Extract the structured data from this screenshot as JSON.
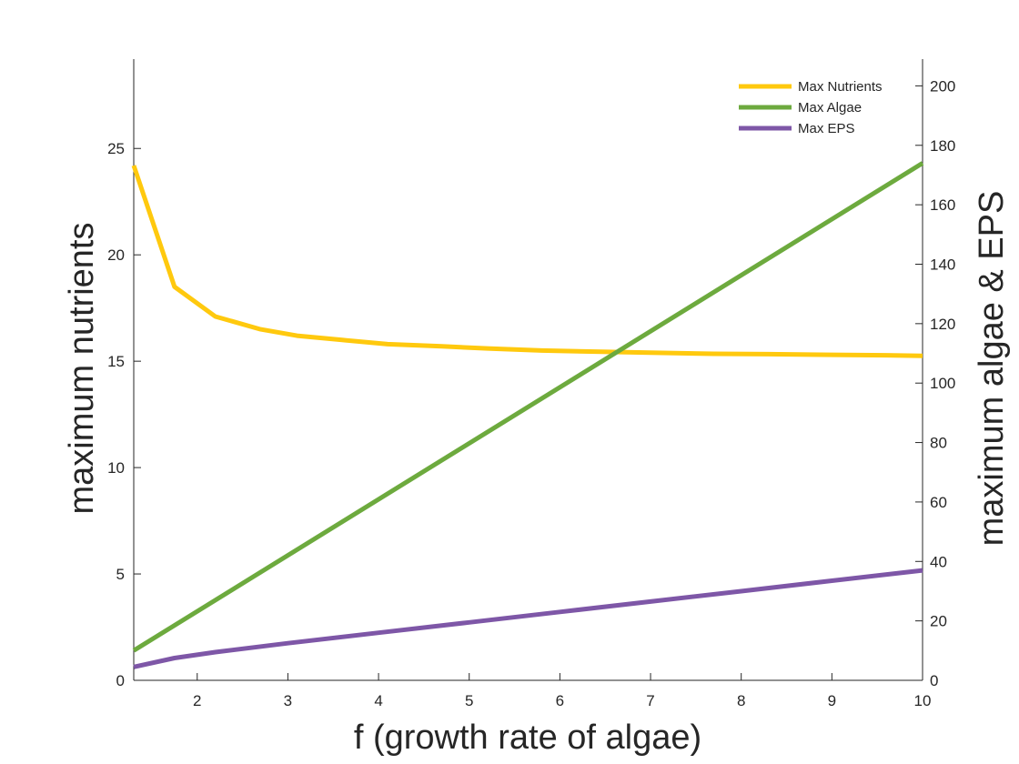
{
  "chart_data": {
    "type": "line",
    "xlabel": "f (growth rate of algae)",
    "ylabel_left": "maximum nutrients",
    "ylabel_right": "maximum algae & EPS",
    "xlim": [
      1.3,
      10
    ],
    "ylim_left": [
      0,
      29.2
    ],
    "ylim_right": [
      0,
      209
    ],
    "x_ticks": [
      2,
      3,
      4,
      5,
      6,
      7,
      8,
      9,
      10
    ],
    "y_ticks_left": [
      0,
      5,
      10,
      15,
      20,
      25
    ],
    "y_ticks_right": [
      0,
      20,
      40,
      60,
      80,
      100,
      120,
      140,
      160,
      180,
      200
    ],
    "legend_position": "top-right",
    "grid": false,
    "series": [
      {
        "name": "Max Nutrients",
        "axis": "left",
        "color": "#FFC90E",
        "x": [
          1.3,
          1.75,
          2.2,
          2.7,
          3.1,
          3.6,
          4.1,
          4.7,
          5.2,
          5.8,
          6.4,
          7.0,
          7.7,
          8.3,
          9.0,
          9.6,
          10.0
        ],
        "y": [
          24.2,
          18.5,
          17.1,
          16.5,
          16.2,
          16.0,
          15.8,
          15.7,
          15.6,
          15.5,
          15.45,
          15.4,
          15.35,
          15.33,
          15.3,
          15.28,
          15.25
        ]
      },
      {
        "name": "Max Algae",
        "axis": "right",
        "color": "#6DAA3E",
        "x": [
          1.3,
          10.0
        ],
        "y": [
          10,
          174
        ]
      },
      {
        "name": "Max EPS",
        "axis": "right",
        "color": "#7E57A7",
        "x": [
          1.3,
          1.75,
          2.2,
          3,
          4,
          5,
          6,
          7,
          8,
          9,
          10
        ],
        "y": [
          4.5,
          7.5,
          9.5,
          12.5,
          16,
          19.5,
          23,
          26.5,
          30,
          33.5,
          37
        ]
      }
    ]
  }
}
